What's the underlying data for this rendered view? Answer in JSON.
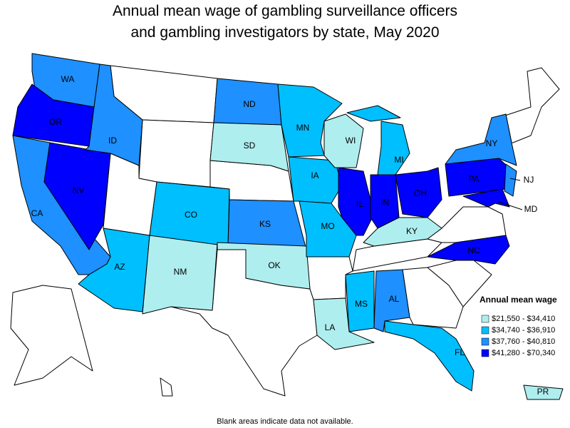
{
  "title": [
    "Annual mean wage of gambling surveillance officers",
    "and gambling investigators by state, May 2020"
  ],
  "legend": {
    "title": "Annual mean wage",
    "items": [
      {
        "label": "$21,550 - $34,410",
        "color": "#afeeee"
      },
      {
        "label": "$34,740 - $36,910",
        "color": "#00bfff"
      },
      {
        "label": "$37,760 - $40,810",
        "color": "#1e90ff"
      },
      {
        "label": "$41,280 - $70,340",
        "color": "#0000ff"
      }
    ]
  },
  "states": [
    {
      "label": "WA",
      "color": "#1e90ff"
    },
    {
      "label": "OR",
      "color": "#0000ff"
    },
    {
      "label": "CA",
      "color": "#1e90ff"
    },
    {
      "label": "NV",
      "color": "#0000ff"
    },
    {
      "label": "ID",
      "color": "#1e90ff"
    },
    {
      "label": "AZ",
      "color": "#00bfff"
    },
    {
      "label": "NM",
      "color": "#afeeee"
    },
    {
      "label": "CO",
      "color": "#00bfff"
    },
    {
      "label": "ND",
      "color": "#1e90ff"
    },
    {
      "label": "SD",
      "color": "#afeeee"
    },
    {
      "label": "KS",
      "color": "#1e90ff"
    },
    {
      "label": "OK",
      "color": "#afeeee"
    },
    {
      "label": "MN",
      "color": "#00bfff"
    },
    {
      "label": "IA",
      "color": "#00bfff"
    },
    {
      "label": "MO",
      "color": "#00bfff"
    },
    {
      "label": "WI",
      "color": "#afeeee"
    },
    {
      "label": "IL",
      "color": "#0000ff"
    },
    {
      "label": "MI",
      "color": "#00bfff"
    },
    {
      "label": "IN",
      "color": "#0000ff"
    },
    {
      "label": "OH",
      "color": "#0000ff"
    },
    {
      "label": "KY",
      "color": "#afeeee"
    },
    {
      "label": "PA",
      "color": "#0000ff"
    },
    {
      "label": "NY",
      "color": "#1e90ff"
    },
    {
      "label": "NJ",
      "color": "#1e90ff"
    },
    {
      "label": "MD",
      "color": "#0000ff"
    },
    {
      "label": "NC",
      "color": "#0000ff"
    },
    {
      "label": "MS",
      "color": "#00bfff"
    },
    {
      "label": "AL",
      "color": "#1e90ff"
    },
    {
      "label": "LA",
      "color": "#afeeee"
    },
    {
      "label": "FL",
      "color": "#00bfff"
    },
    {
      "label": "PR",
      "color": "#afeeee"
    }
  ],
  "note": "Blank areas indicate data not available."
}
